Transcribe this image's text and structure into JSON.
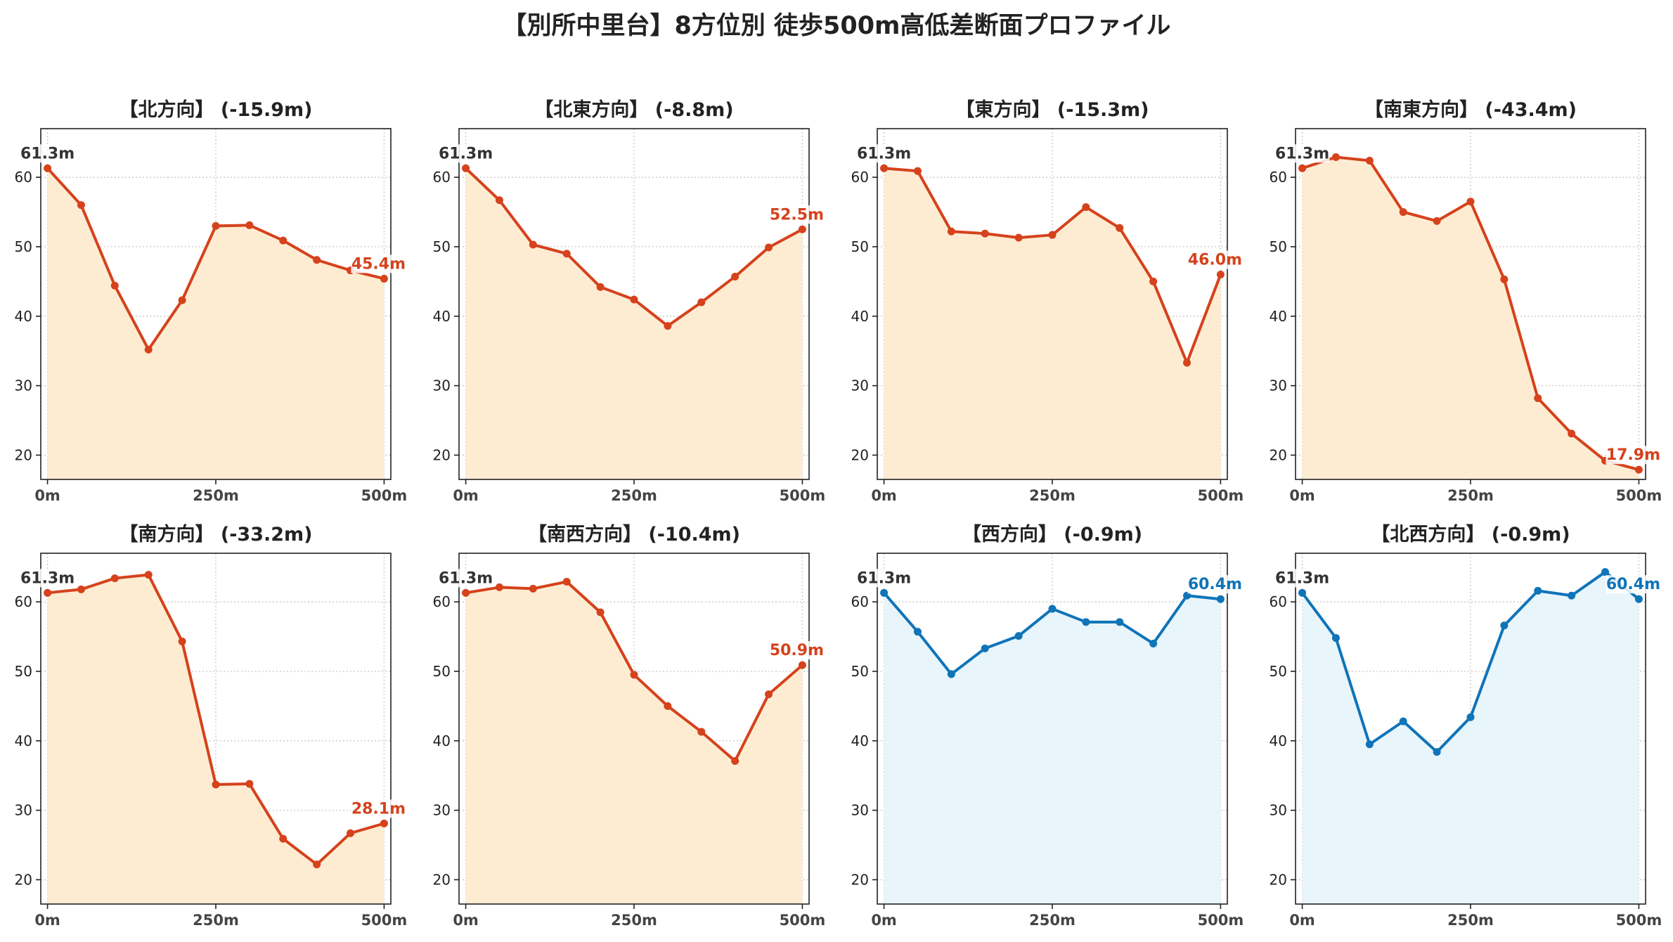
{
  "figure": {
    "title": "【別所中里台】8方位別 徒歩500m高低差断面プロファイル"
  },
  "colors": {
    "downhill_line": "#d5421c",
    "downhill_fill": "#fdecd2",
    "uphill_line": "#1074b8",
    "uphill_fill": "#e8f5fb",
    "start_label": "#333333"
  },
  "chart_data": [
    {
      "type": "area",
      "title": "【北方向】 (-15.9m)",
      "xlabel": "",
      "ylabel": "",
      "x": [
        0,
        50,
        100,
        150,
        200,
        250,
        300,
        350,
        400,
        450,
        500
      ],
      "x_ticks": [
        0,
        250,
        500
      ],
      "x_tick_labels": [
        "0m",
        "250m",
        "500m"
      ],
      "y_ticks": [
        20,
        30,
        40,
        50,
        60
      ],
      "xlim": [
        -10,
        510
      ],
      "ylim": [
        16.5,
        67
      ],
      "grid": true,
      "series": [
        {
          "values": [
            61.3,
            56,
            44.4,
            35.2,
            42.3,
            53,
            53.1,
            50.9,
            48.1,
            46.6,
            45.4
          ],
          "color": "#d5421c",
          "fill": "#fdecd2"
        }
      ],
      "annotations": [
        {
          "text": "61.3m",
          "at": "start"
        },
        {
          "text": "45.4m",
          "at": "end"
        }
      ]
    },
    {
      "type": "area",
      "title": "【北東方向】 (-8.8m)",
      "xlabel": "",
      "ylabel": "",
      "x": [
        0,
        50,
        100,
        150,
        200,
        250,
        300,
        350,
        400,
        450,
        500
      ],
      "x_ticks": [
        0,
        250,
        500
      ],
      "x_tick_labels": [
        "0m",
        "250m",
        "500m"
      ],
      "y_ticks": [
        20,
        30,
        40,
        50,
        60
      ],
      "xlim": [
        -10,
        510
      ],
      "ylim": [
        16.5,
        67
      ],
      "grid": true,
      "series": [
        {
          "values": [
            61.3,
            56.7,
            50.3,
            49,
            44.2,
            42.4,
            38.6,
            42,
            45.7,
            49.9,
            52.5
          ],
          "color": "#d5421c",
          "fill": "#fdecd2"
        }
      ],
      "annotations": [
        {
          "text": "61.3m",
          "at": "start"
        },
        {
          "text": "52.5m",
          "at": "end"
        }
      ]
    },
    {
      "type": "area",
      "title": "【東方向】 (-15.3m)",
      "xlabel": "",
      "ylabel": "",
      "x": [
        0,
        50,
        100,
        150,
        200,
        250,
        300,
        350,
        400,
        450,
        500
      ],
      "x_ticks": [
        0,
        250,
        500
      ],
      "x_tick_labels": [
        "0m",
        "250m",
        "500m"
      ],
      "y_ticks": [
        20,
        30,
        40,
        50,
        60
      ],
      "xlim": [
        -10,
        510
      ],
      "ylim": [
        16.5,
        67
      ],
      "grid": true,
      "series": [
        {
          "values": [
            61.3,
            60.9,
            52.2,
            51.9,
            51.3,
            51.7,
            55.7,
            52.7,
            45,
            33.3,
            46
          ],
          "color": "#d5421c",
          "fill": "#fdecd2"
        }
      ],
      "annotations": [
        {
          "text": "61.3m",
          "at": "start"
        },
        {
          "text": "46.0m",
          "at": "end"
        }
      ]
    },
    {
      "type": "area",
      "title": "【南東方向】 (-43.4m)",
      "xlabel": "",
      "ylabel": "",
      "x": [
        0,
        50,
        100,
        150,
        200,
        250,
        300,
        350,
        400,
        450,
        500
      ],
      "x_ticks": [
        0,
        250,
        500
      ],
      "x_tick_labels": [
        "0m",
        "250m",
        "500m"
      ],
      "y_ticks": [
        20,
        30,
        40,
        50,
        60
      ],
      "xlim": [
        -10,
        510
      ],
      "ylim": [
        16.5,
        67
      ],
      "grid": true,
      "series": [
        {
          "values": [
            61.3,
            62.9,
            62.4,
            55,
            53.7,
            56.5,
            45.3,
            28.2,
            23.1,
            19.2,
            17.9
          ],
          "color": "#d5421c",
          "fill": "#fdecd2"
        }
      ],
      "annotations": [
        {
          "text": "61.3m",
          "at": "start"
        },
        {
          "text": "17.9m",
          "at": "end"
        }
      ]
    },
    {
      "type": "area",
      "title": "【南方向】 (-33.2m)",
      "xlabel": "",
      "ylabel": "",
      "x": [
        0,
        50,
        100,
        150,
        200,
        250,
        300,
        350,
        400,
        450,
        500
      ],
      "x_ticks": [
        0,
        250,
        500
      ],
      "x_tick_labels": [
        "0m",
        "250m",
        "500m"
      ],
      "y_ticks": [
        20,
        30,
        40,
        50,
        60
      ],
      "xlim": [
        -10,
        510
      ],
      "ylim": [
        16.5,
        67
      ],
      "grid": true,
      "series": [
        {
          "values": [
            61.3,
            61.8,
            63.4,
            63.9,
            54.3,
            33.7,
            33.8,
            25.9,
            22.2,
            26.7,
            28.1
          ],
          "color": "#d5421c",
          "fill": "#fdecd2"
        }
      ],
      "annotations": [
        {
          "text": "61.3m",
          "at": "start"
        },
        {
          "text": "28.1m",
          "at": "end"
        }
      ]
    },
    {
      "type": "area",
      "title": "【南西方向】 (-10.4m)",
      "xlabel": "",
      "ylabel": "",
      "x": [
        0,
        50,
        100,
        150,
        200,
        250,
        300,
        350,
        400,
        450,
        500
      ],
      "x_ticks": [
        0,
        250,
        500
      ],
      "x_tick_labels": [
        "0m",
        "250m",
        "500m"
      ],
      "y_ticks": [
        20,
        30,
        40,
        50,
        60
      ],
      "xlim": [
        -10,
        510
      ],
      "ylim": [
        16.5,
        67
      ],
      "grid": true,
      "series": [
        {
          "values": [
            61.3,
            62.1,
            61.9,
            62.9,
            58.5,
            49.5,
            45,
            41.3,
            37.1,
            46.7,
            50.9
          ],
          "color": "#d5421c",
          "fill": "#fdecd2"
        }
      ],
      "annotations": [
        {
          "text": "61.3m",
          "at": "start"
        },
        {
          "text": "50.9m",
          "at": "end"
        }
      ]
    },
    {
      "type": "area",
      "title": "【西方向】 (-0.9m)",
      "xlabel": "",
      "ylabel": "",
      "x": [
        0,
        50,
        100,
        150,
        200,
        250,
        300,
        350,
        400,
        450,
        500
      ],
      "x_ticks": [
        0,
        250,
        500
      ],
      "x_tick_labels": [
        "0m",
        "250m",
        "500m"
      ],
      "y_ticks": [
        20,
        30,
        40,
        50,
        60
      ],
      "xlim": [
        -10,
        510
      ],
      "ylim": [
        16.5,
        67
      ],
      "grid": true,
      "series": [
        {
          "values": [
            61.3,
            55.7,
            49.6,
            53.3,
            55.1,
            59,
            57.1,
            57.1,
            54,
            60.9,
            60.4
          ],
          "color": "#1074b8",
          "fill": "#e8f5fb"
        }
      ],
      "annotations": [
        {
          "text": "61.3m",
          "at": "start"
        },
        {
          "text": "60.4m",
          "at": "end"
        }
      ]
    },
    {
      "type": "area",
      "title": "【北西方向】 (-0.9m)",
      "xlabel": "",
      "ylabel": "",
      "x": [
        0,
        50,
        100,
        150,
        200,
        250,
        300,
        350,
        400,
        450,
        500
      ],
      "x_ticks": [
        0,
        250,
        500
      ],
      "x_tick_labels": [
        "0m",
        "250m",
        "500m"
      ],
      "y_ticks": [
        20,
        30,
        40,
        50,
        60
      ],
      "xlim": [
        -10,
        510
      ],
      "ylim": [
        16.5,
        67
      ],
      "grid": true,
      "series": [
        {
          "values": [
            61.3,
            54.8,
            39.5,
            42.8,
            38.4,
            43.4,
            56.6,
            61.6,
            60.9,
            64.3,
            60.4
          ],
          "color": "#1074b8",
          "fill": "#e8f5fb"
        }
      ],
      "annotations": [
        {
          "text": "61.3m",
          "at": "start"
        },
        {
          "text": "60.4m",
          "at": "end"
        }
      ]
    }
  ]
}
